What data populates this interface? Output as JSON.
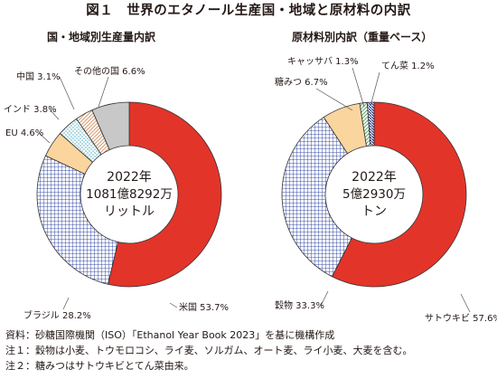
{
  "title": "図１　世界のエタノール生産国・地域と原材料の内訳",
  "charts": [
    {
      "subtitle": "国・地域別生産量内訳",
      "center_text": [
        "2022年",
        "1081億8292万",
        "リットル"
      ]
    },
    {
      "subtitle": "原材料別内訳（重量ベース）",
      "center_text": [
        "2022年",
        "5億2930万",
        "トン"
      ]
    }
  ],
  "notes": [
    "資料：砂糖国際機関（ISO）「Ethanol Year Book 2023」を基に機構作成",
    "注１：穀物は小麦、トウモロコシ、ライ麦、ソルガム、オート麦、ライ小麦、大麦を含む。",
    "注２：糖みつはサトウキビとてん菜由来。"
  ],
  "colors": {
    "red": "#e3342a",
    "blue_hatch": "#3b4fa8",
    "orange": "#fbd59e",
    "teal_dots": "#58b3c4",
    "brown_hatch": "#d79b73",
    "gray": "#c8c8c8",
    "green_hatch": "#62a56a",
    "navy_hatch": "#293a8a"
  },
  "chart_data": [
    {
      "type": "pie",
      "title": "国・地域別生産量内訳",
      "series": [
        {
          "label": "米国",
          "value": 53.7,
          "display": "米国 53.7%",
          "fill": "red"
        },
        {
          "label": "ブラジル",
          "value": 28.2,
          "display": "ブラジル 28.2%",
          "fill": "blue_hatch"
        },
        {
          "label": "EU",
          "value": 4.6,
          "display": "EU 4.6%",
          "fill": "orange"
        },
        {
          "label": "インド",
          "value": 3.8,
          "display": "インド 3.8%",
          "fill": "teal_dots"
        },
        {
          "label": "中国",
          "value": 3.1,
          "display": "中国 3.1%",
          "fill": "brown_hatch"
        },
        {
          "label": "その他の国",
          "value": 6.6,
          "display": "その他の国 6.6%",
          "fill": "gray"
        }
      ]
    },
    {
      "type": "pie",
      "title": "原材料別内訳（重量ベース）",
      "series": [
        {
          "label": "サトウキビ",
          "value": 57.6,
          "display": "サトウキビ 57.6%",
          "fill": "red"
        },
        {
          "label": "穀物",
          "value": 33.3,
          "display": "穀物 33.3%",
          "fill": "blue_hatch"
        },
        {
          "label": "糖みつ",
          "value": 6.7,
          "display": "糖みつ 6.7%",
          "fill": "orange"
        },
        {
          "label": "キャッサバ",
          "value": 1.3,
          "display": "キャッサバ 1.3%",
          "fill": "green_hatch"
        },
        {
          "label": "てん菜",
          "value": 1.2,
          "display": "てん菜 1.2%",
          "fill": "navy_hatch"
        }
      ]
    }
  ]
}
